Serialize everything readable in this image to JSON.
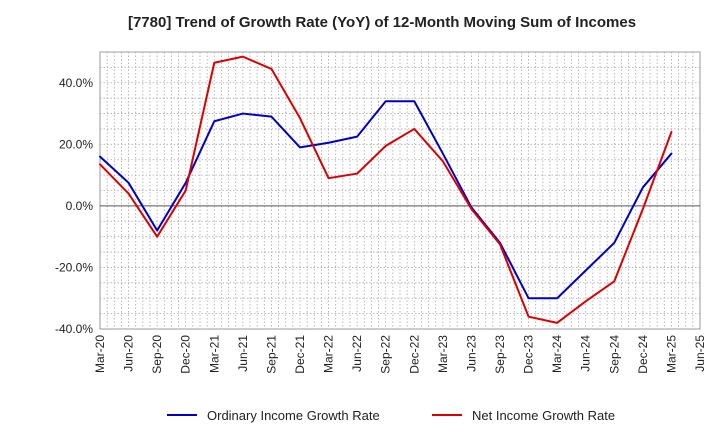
{
  "chart_data": {
    "type": "line",
    "title": "[7780]  Trend of Growth Rate (YoY) of 12-Month Moving Sum of Incomes",
    "xlabel": "",
    "ylabel": "",
    "ylim": [
      -40,
      50
    ],
    "y_ticks": [
      -40,
      -20,
      0,
      20,
      40
    ],
    "y_tick_labels": [
      "-40.0%",
      "-20.0%",
      "0.0%",
      "20.0%",
      "40.0%"
    ],
    "grid": true,
    "legend_position": "bottom",
    "categories": [
      "Mar-20",
      "Jun-20",
      "Sep-20",
      "Dec-20",
      "Mar-21",
      "Jun-21",
      "Sep-21",
      "Dec-21",
      "Mar-22",
      "Jun-22",
      "Sep-22",
      "Dec-22",
      "Mar-23",
      "Jun-23",
      "Sep-23",
      "Dec-23",
      "Mar-24",
      "Jun-24",
      "Sep-24",
      "Dec-24",
      "Mar-25",
      "Jun-25"
    ],
    "series": [
      {
        "name": "Ordinary Income Growth Rate",
        "color": "#0000cc",
        "values": [
          16.0,
          7.5,
          -8.0,
          7.5,
          27.5,
          30.0,
          29.0,
          19.0,
          20.5,
          22.5,
          34.0,
          34.0,
          17.0,
          -0.5,
          -12.0,
          -30.0,
          -30.0,
          -21.0,
          -12.0,
          6.0,
          17.0,
          null
        ]
      },
      {
        "name": "Net Income Growth Rate",
        "color": "#dd0000",
        "values": [
          13.5,
          4.0,
          -10.0,
          5.0,
          46.5,
          48.5,
          44.5,
          28.5,
          9.0,
          10.5,
          19.5,
          25.0,
          14.5,
          -1.0,
          -12.5,
          -36.0,
          -38.0,
          -31.0,
          -24.5,
          -1.0,
          24.0,
          null
        ]
      }
    ]
  }
}
